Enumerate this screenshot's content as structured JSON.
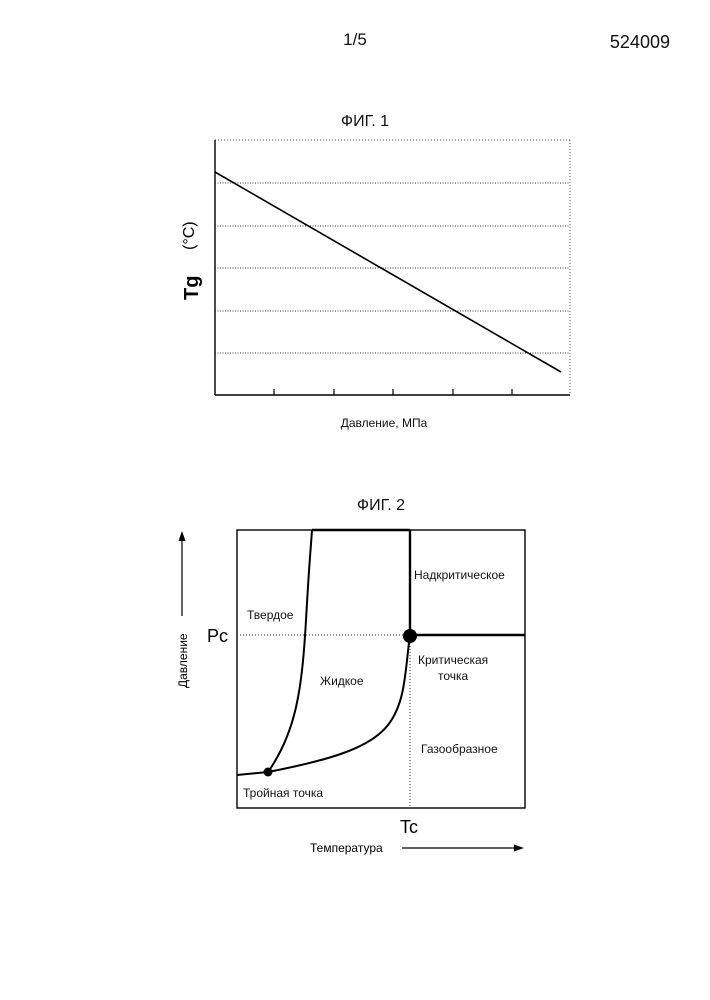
{
  "header": {
    "page_number": "1/5",
    "document_number": "524009"
  },
  "figure1": {
    "title": "ФИГ. 1",
    "ylabel_main": "Tg",
    "ylabel_unit": "(°C)",
    "xlabel": "Давление, МПа"
  },
  "figure2": {
    "title": "ФИГ. 2",
    "ylabel": "Давление",
    "xlabel": "Температура",
    "pc_label": "Pc",
    "tc_label": "Tc",
    "regions": {
      "solid": "Твердое",
      "liquid": "Жидкое",
      "supercritical": "Надкритическое",
      "gas": "Газообразное",
      "critical_point_line1": "Критическая",
      "critical_point_line2": "точка",
      "triple_point": "Тройная точка"
    }
  },
  "chart_data": [
    {
      "type": "line",
      "title": "ФИГ. 1",
      "xlabel": "Давление, МПа",
      "ylabel": "Tg (°C)",
      "x": [
        0,
        1
      ],
      "series": [
        {
          "values": [
            1,
            0
          ]
        }
      ],
      "grid": true
    }
  ]
}
